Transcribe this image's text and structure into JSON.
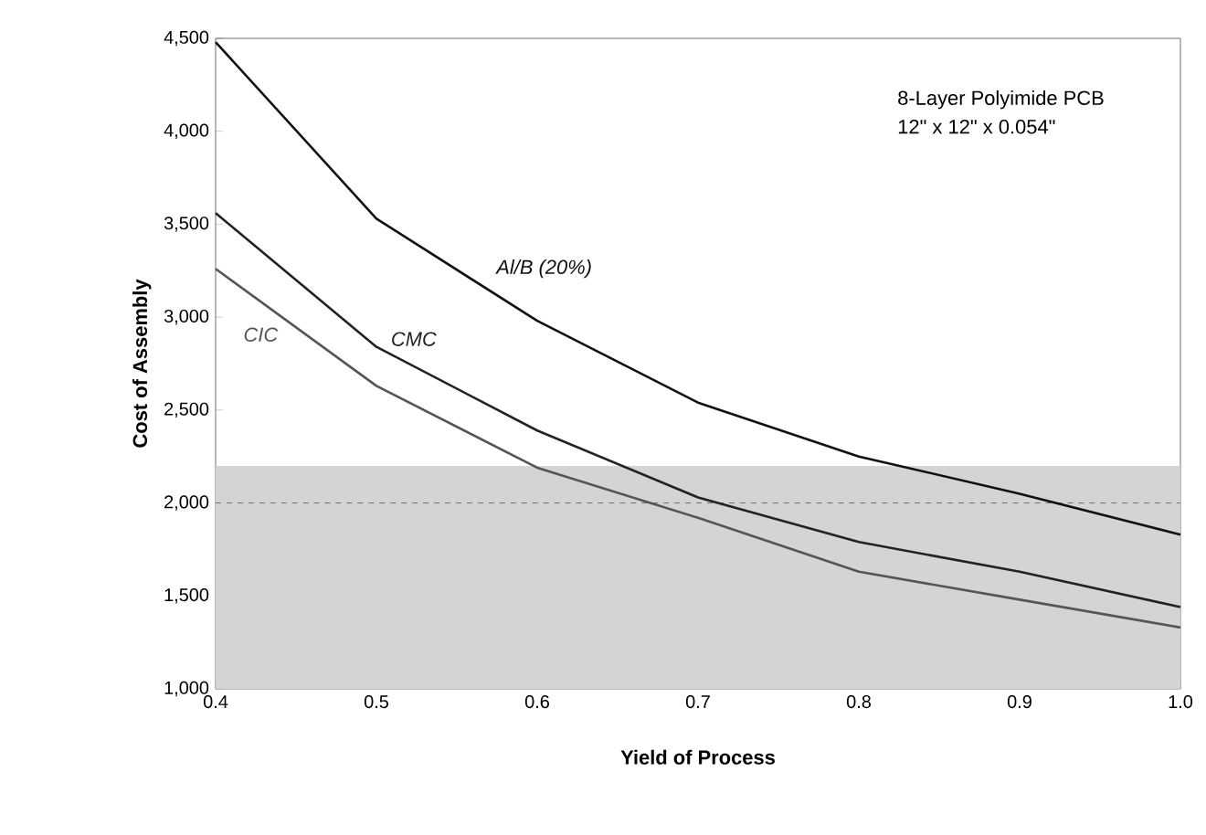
{
  "chart_data": {
    "type": "line",
    "xlabel": "Yield of Process",
    "ylabel": "Cost of Assembly",
    "x": [
      0.4,
      0.5,
      0.6,
      0.7,
      0.8,
      0.9,
      1.0
    ],
    "series": [
      {
        "name": "Al/B (20%)",
        "color": "#111111",
        "values": [
          4480,
          3530,
          2980,
          2540,
          2250,
          2050,
          1830
        ]
      },
      {
        "name": "CMC",
        "color": "#222222",
        "values": [
          3560,
          2840,
          2390,
          2030,
          1790,
          1630,
          1440
        ]
      },
      {
        "name": "CIC",
        "color": "#555555",
        "values": [
          3260,
          2630,
          2190,
          1920,
          1630,
          1480,
          1330
        ]
      }
    ],
    "xlim": [
      0.4,
      1.0
    ],
    "xticks": [
      {
        "value": 0.4,
        "label": "0.4"
      },
      {
        "value": 0.5,
        "label": "0.5"
      },
      {
        "value": 0.6,
        "label": "0.6"
      },
      {
        "value": 0.7,
        "label": "0.7"
      },
      {
        "value": 0.8,
        "label": "0.8"
      },
      {
        "value": 0.9,
        "label": "0.9"
      },
      {
        "value": 1.0,
        "label": "1.0"
      }
    ],
    "ylim": [
      1000,
      4500
    ],
    "yticks": [
      {
        "value": 1000,
        "label": "1,000"
      },
      {
        "value": 1500,
        "label": "1,500"
      },
      {
        "value": 2000,
        "label": "2,000"
      },
      {
        "value": 2500,
        "label": "2,500"
      },
      {
        "value": 3000,
        "label": "3,000"
      },
      {
        "value": 3500,
        "label": "3,500"
      },
      {
        "value": 4000,
        "label": "4,000"
      },
      {
        "value": 4500,
        "label": "4,500"
      }
    ],
    "ref_lines": [
      {
        "axis": "y",
        "value": 2000,
        "color": "#555555",
        "line_style": "dashed"
      }
    ],
    "bands": [
      {
        "axis": "y",
        "from": 1000,
        "to": 2200,
        "color": "#d4d4d4"
      }
    ],
    "annotations": [
      "8-Layer Polyimide PCB",
      "12\" x 12\" x 0.054\""
    ],
    "grid": false,
    "legend": false,
    "marker": "none",
    "line_style": "solid"
  }
}
